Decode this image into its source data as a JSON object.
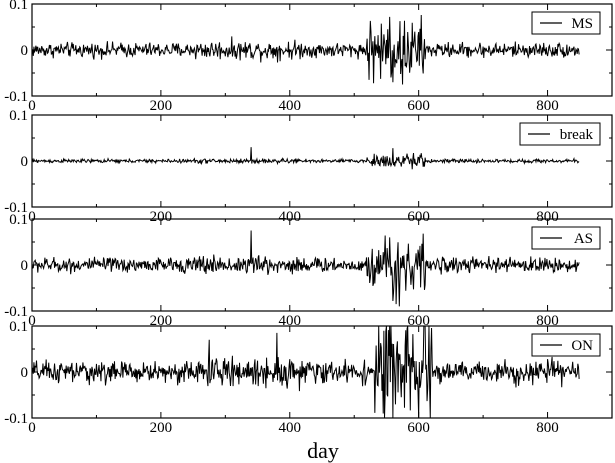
{
  "figure": {
    "xlabel": "day"
  },
  "chart_data": [
    {
      "type": "line",
      "legend": "MS",
      "legend_position": "top-right",
      "xlim": [
        0,
        900
      ],
      "ylim": [
        -0.1,
        0.1
      ],
      "xticks": [
        "0",
        "200",
        "400",
        "600",
        "800"
      ],
      "yticks": [
        "0.1",
        "0",
        "-0.1"
      ],
      "series": [
        {
          "name": "MS",
          "n_days": 850,
          "typical_amplitude": 0.012,
          "burst_window": [
            520,
            610
          ],
          "burst_amplitude": 0.05,
          "extremes": [
            {
              "x": 555,
              "y": 0.072
            },
            {
              "x": 560,
              "y": -0.07
            },
            {
              "x": 575,
              "y": -0.075
            }
          ]
        }
      ]
    },
    {
      "type": "line",
      "legend": "break",
      "legend_position": "top-right",
      "xlim": [
        0,
        900
      ],
      "ylim": [
        -0.1,
        0.1
      ],
      "xticks": [
        "0",
        "200",
        "400",
        "600",
        "800"
      ],
      "yticks": [
        "0.1",
        "0",
        "-0.1"
      ],
      "series": [
        {
          "name": "break",
          "n_days": 850,
          "typical_amplitude": 0.003,
          "burst_window": [
            520,
            610
          ],
          "burst_amplitude": 0.012,
          "extremes": [
            {
              "x": 340,
              "y": 0.03
            },
            {
              "x": 560,
              "y": 0.028
            },
            {
              "x": 590,
              "y": -0.018
            }
          ]
        }
      ]
    },
    {
      "type": "line",
      "legend": "AS",
      "legend_position": "top-right",
      "xlim": [
        0,
        900
      ],
      "ylim": [
        -0.1,
        0.1
      ],
      "xticks": [
        "0",
        "200",
        "400",
        "600",
        "800"
      ],
      "yticks": [
        "0.1",
        "0",
        "-0.1"
      ],
      "series": [
        {
          "name": "AS",
          "n_days": 850,
          "typical_amplitude": 0.012,
          "burst_window": [
            520,
            610
          ],
          "burst_amplitude": 0.045,
          "extremes": [
            {
              "x": 340,
              "y": 0.075
            },
            {
              "x": 555,
              "y": 0.06
            },
            {
              "x": 565,
              "y": -0.085
            },
            {
              "x": 570,
              "y": -0.09
            }
          ]
        }
      ]
    },
    {
      "type": "line",
      "legend": "ON",
      "legend_position": "top-right",
      "xlim": [
        0,
        900
      ],
      "ylim": [
        -0.1,
        0.1
      ],
      "xticks": [
        "0",
        "200",
        "400",
        "600",
        "800"
      ],
      "yticks": [
        "0.1",
        "0",
        "-0.1"
      ],
      "series": [
        {
          "name": "ON",
          "n_days": 850,
          "typical_amplitude": 0.018,
          "burst_window": [
            530,
            620
          ],
          "burst_amplitude": 0.09,
          "extremes": [
            {
              "x": 275,
              "y": 0.07
            },
            {
              "x": 380,
              "y": 0.085
            },
            {
              "x": 555,
              "y": 0.1
            },
            {
              "x": 560,
              "y": -0.1
            },
            {
              "x": 600,
              "y": -0.1
            }
          ]
        }
      ]
    }
  ]
}
